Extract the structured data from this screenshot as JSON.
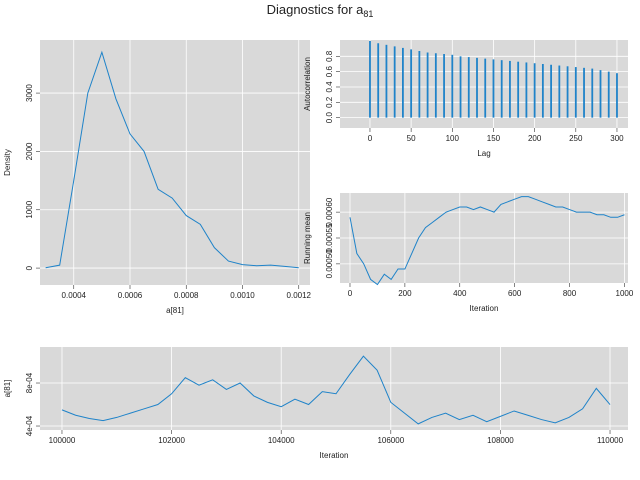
{
  "title": "Diagnostics for a",
  "title_subscript": "81",
  "chart_data": [
    {
      "type": "line",
      "xlabel": "a[81]",
      "ylabel": "Density",
      "color": "#1f83c9",
      "grid": true,
      "x": [
        0.0003,
        0.00035,
        0.0004,
        0.00045,
        0.0005,
        0.00055,
        0.0006,
        0.00065,
        0.0007,
        0.00075,
        0.0008,
        0.00085,
        0.0009,
        0.00095,
        0.001,
        0.00105,
        0.0011,
        0.00115,
        0.0012
      ],
      "values": [
        5,
        50,
        1500,
        3000,
        3700,
        2900,
        2300,
        2000,
        1350,
        1200,
        900,
        750,
        350,
        120,
        60,
        40,
        50,
        30,
        5
      ],
      "xlim": [
        0.00028,
        0.00124
      ],
      "ylim": [
        -290,
        3910
      ],
      "xticks": [
        0.0004,
        0.0006,
        0.0008,
        {
          "value": 0.001,
          "label": "0.0010"
        },
        0.0012
      ],
      "yticks": [
        0,
        1000,
        2000,
        3000
      ]
    },
    {
      "type": "spike",
      "xlabel": "Lag",
      "ylabel": "Autocorrelation",
      "color": "#1f83c9",
      "grid": true,
      "x": [
        0,
        10,
        20,
        30,
        40,
        50,
        60,
        70,
        80,
        90,
        100,
        110,
        120,
        130,
        140,
        150,
        160,
        170,
        180,
        190,
        200,
        210,
        220,
        230,
        240,
        250,
        260,
        270,
        280,
        290,
        300
      ],
      "values": [
        1.0,
        0.97,
        0.95,
        0.93,
        0.91,
        0.89,
        0.87,
        0.85,
        0.84,
        0.83,
        0.82,
        0.8,
        0.79,
        0.78,
        0.77,
        0.76,
        0.75,
        0.74,
        0.73,
        0.72,
        0.71,
        0.7,
        0.69,
        0.68,
        0.67,
        0.66,
        0.65,
        0.64,
        0.62,
        0.6,
        0.58
      ],
      "xlim": [
        -36.4,
        313.4
      ],
      "ylim": [
        -0.135,
        1.013
      ],
      "xticks": [
        0,
        50,
        100,
        150,
        200,
        250,
        300
      ],
      "yticks": [
        {
          "value": 0,
          "label": "0.0"
        },
        0.2,
        0.4,
        0.6,
        0.8
      ]
    },
    {
      "type": "line",
      "xlabel": "Iteration",
      "ylabel": "Running mean",
      "color": "#1f83c9",
      "grid": true,
      "x": [
        0,
        25,
        50,
        75,
        100,
        125,
        150,
        175,
        200,
        225,
        250,
        275,
        300,
        325,
        350,
        375,
        400,
        425,
        450,
        475,
        500,
        525,
        550,
        575,
        600,
        625,
        650,
        675,
        700,
        725,
        750,
        775,
        800,
        825,
        850,
        875,
        900,
        925,
        950,
        975,
        1000
      ],
      "values": [
        0.00059,
        0.00052,
        0.0005,
        0.00047,
        0.00046,
        0.00048,
        0.00047,
        0.00049,
        0.00049,
        0.00052,
        0.00055,
        0.00057,
        0.00058,
        0.00059,
        0.0006,
        0.000605,
        0.00061,
        0.00061,
        0.000605,
        0.00061,
        0.000605,
        0.0006,
        0.000615,
        0.00062,
        0.000625,
        0.00063,
        0.00063,
        0.000625,
        0.00062,
        0.000615,
        0.00061,
        0.00061,
        0.000605,
        0.0006,
        0.0006,
        0.0006,
        0.000595,
        0.000595,
        0.00059,
        0.00059,
        0.000595
      ],
      "xlim": [
        -36.4,
        1013
      ],
      "ylim": [
        0.000463,
        0.000637
      ],
      "xticks": [
        0,
        200,
        400,
        600,
        800,
        1000
      ],
      "yticks": [
        {
          "value": 0.0005,
          "label": "0.00050"
        },
        {
          "value": 0.00055,
          "label": "0.00055"
        },
        {
          "value": 0.0006,
          "label": "0.00060"
        }
      ]
    },
    {
      "type": "line",
      "xlabel": "Iteration",
      "ylabel": "a[81]",
      "color": "#1f83c9",
      "grid": true,
      "x": [
        100000,
        100250,
        100500,
        100750,
        101000,
        101250,
        101500,
        101750,
        102000,
        102250,
        102500,
        102750,
        103000,
        103250,
        103500,
        103750,
        104000,
        104250,
        104500,
        104750,
        105000,
        105250,
        105500,
        105750,
        106000,
        106250,
        106500,
        106750,
        107000,
        107250,
        107500,
        107750,
        108000,
        108250,
        108500,
        108750,
        109000,
        109250,
        109500,
        109750,
        110000
      ],
      "values": [
        0.00055,
        0.0005,
        0.00047,
        0.00045,
        0.00048,
        0.00052,
        0.00056,
        0.0006,
        0.0007,
        0.00085,
        0.00078,
        0.00083,
        0.00074,
        0.0008,
        0.00068,
        0.00062,
        0.00058,
        0.00065,
        0.0006,
        0.00072,
        0.0007,
        0.00088,
        0.00105,
        0.00092,
        0.00062,
        0.00052,
        0.00042,
        0.00048,
        0.00052,
        0.00046,
        0.0005,
        0.00044,
        0.00049,
        0.00054,
        0.0005,
        0.00046,
        0.00043,
        0.00048,
        0.00056,
        0.00075,
        0.0006
      ],
      "xlim": [
        99599,
        110328
      ],
      "ylim": [
        0.000363,
        0.001135
      ],
      "xticks": [
        100000,
        102000,
        104000,
        106000,
        108000,
        110000
      ],
      "yticks": [
        {
          "value": 0.0004,
          "label": "4e-04"
        },
        {
          "value": 0.0008,
          "label": "8e-04"
        }
      ]
    }
  ]
}
